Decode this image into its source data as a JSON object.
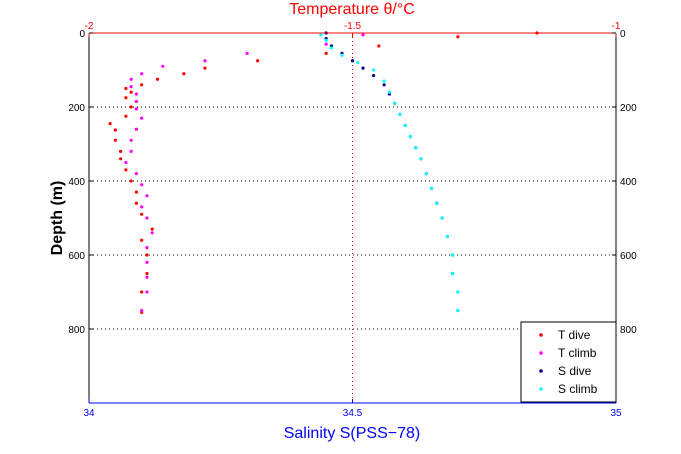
{
  "chart_data": {
    "type": "scatter",
    "top_axis": {
      "label": "Temperature θ/°C",
      "range": [
        -2,
        -1
      ],
      "ticks": [
        -2,
        -1.5,
        -1
      ],
      "tick_labels": [
        "-2",
        "-1.5",
        "-1"
      ],
      "color": "#ff0000"
    },
    "bottom_axis": {
      "label": "Salinity S(PSS−78)",
      "range": [
        34,
        35
      ],
      "ticks": [
        34,
        34.5,
        35
      ],
      "tick_labels": [
        "34",
        "34.5",
        "35"
      ],
      "color": "#0000ff"
    },
    "y_axis": {
      "label": "Depth (m)",
      "range": [
        0,
        1000
      ],
      "reversed": true,
      "ticks": [
        0,
        200,
        400,
        600,
        800
      ],
      "tick_labels": [
        "0",
        "200",
        "400",
        "600",
        "800"
      ]
    },
    "grid": true,
    "legend_position": "bottom-right",
    "series": [
      {
        "name": "T dive",
        "axis": "top",
        "color": "#ff0000",
        "points": [
          [
            -1.15,
            0
          ],
          [
            -1.3,
            10
          ],
          [
            -1.45,
            35
          ],
          [
            -1.55,
            55
          ],
          [
            -1.68,
            75
          ],
          [
            -1.78,
            95
          ],
          [
            -1.82,
            110
          ],
          [
            -1.87,
            125
          ],
          [
            -1.9,
            140
          ],
          [
            -1.93,
            150
          ],
          [
            -1.92,
            160
          ],
          [
            -1.93,
            175
          ],
          [
            -1.92,
            200
          ],
          [
            -1.93,
            225
          ],
          [
            -1.96,
            245
          ],
          [
            -1.95,
            262
          ],
          [
            -1.95,
            290
          ],
          [
            -1.94,
            320
          ],
          [
            -1.94,
            340
          ],
          [
            -1.93,
            370
          ],
          [
            -1.92,
            400
          ],
          [
            -1.91,
            430
          ],
          [
            -1.91,
            460
          ],
          [
            -1.9,
            490
          ],
          [
            -1.88,
            530
          ],
          [
            -1.9,
            560
          ],
          [
            -1.89,
            600
          ],
          [
            -1.89,
            650
          ],
          [
            -1.9,
            700
          ],
          [
            -1.9,
            755
          ]
        ]
      },
      {
        "name": "T climb",
        "axis": "top",
        "color": "#ff00ff",
        "points": [
          [
            -1.48,
            5
          ],
          [
            -1.55,
            30
          ],
          [
            -1.7,
            55
          ],
          [
            -1.78,
            75
          ],
          [
            -1.86,
            90
          ],
          [
            -1.9,
            110
          ],
          [
            -1.92,
            125
          ],
          [
            -1.92,
            145
          ],
          [
            -1.91,
            165
          ],
          [
            -1.91,
            185
          ],
          [
            -1.91,
            205
          ],
          [
            -1.9,
            230
          ],
          [
            -1.91,
            260
          ],
          [
            -1.92,
            290
          ],
          [
            -1.92,
            320
          ],
          [
            -1.93,
            350
          ],
          [
            -1.91,
            380
          ],
          [
            -1.9,
            410
          ],
          [
            -1.89,
            440
          ],
          [
            -1.9,
            470
          ],
          [
            -1.89,
            500
          ],
          [
            -1.88,
            540
          ],
          [
            -1.89,
            580
          ],
          [
            -1.89,
            620
          ],
          [
            -1.89,
            660
          ],
          [
            -1.89,
            700
          ],
          [
            -1.9,
            750
          ]
        ]
      },
      {
        "name": "S dive",
        "axis": "bottom",
        "color": "#00008b",
        "points": [
          [
            34.45,
            0
          ],
          [
            34.45,
            15
          ],
          [
            34.46,
            35
          ],
          [
            34.48,
            55
          ],
          [
            34.5,
            75
          ],
          [
            34.52,
            95
          ],
          [
            34.54,
            115
          ],
          [
            34.56,
            140
          ],
          [
            34.57,
            165
          ],
          [
            34.58,
            190
          ],
          [
            34.59,
            220
          ],
          [
            34.6,
            250
          ],
          [
            34.61,
            280
          ],
          [
            34.62,
            310
          ],
          [
            34.63,
            340
          ],
          [
            34.64,
            380
          ],
          [
            34.65,
            420
          ],
          [
            34.66,
            460
          ],
          [
            34.67,
            500
          ],
          [
            34.68,
            550
          ],
          [
            34.69,
            600
          ],
          [
            34.69,
            650
          ],
          [
            34.7,
            700
          ],
          [
            34.7,
            750
          ]
        ]
      },
      {
        "name": "S climb",
        "axis": "bottom",
        "color": "#00ffff",
        "points": [
          [
            34.44,
            5
          ],
          [
            34.45,
            20
          ],
          [
            34.46,
            40
          ],
          [
            34.48,
            60
          ],
          [
            34.51,
            80
          ],
          [
            34.54,
            100
          ],
          [
            34.56,
            130
          ],
          [
            34.57,
            160
          ],
          [
            34.58,
            190
          ],
          [
            34.59,
            220
          ],
          [
            34.6,
            250
          ],
          [
            34.61,
            280
          ],
          [
            34.62,
            310
          ],
          [
            34.63,
            340
          ],
          [
            34.64,
            380
          ],
          [
            34.65,
            420
          ],
          [
            34.66,
            460
          ],
          [
            34.67,
            500
          ],
          [
            34.68,
            550
          ],
          [
            34.69,
            600
          ],
          [
            34.69,
            650
          ],
          [
            34.7,
            700
          ],
          [
            34.7,
            750
          ]
        ]
      }
    ]
  }
}
